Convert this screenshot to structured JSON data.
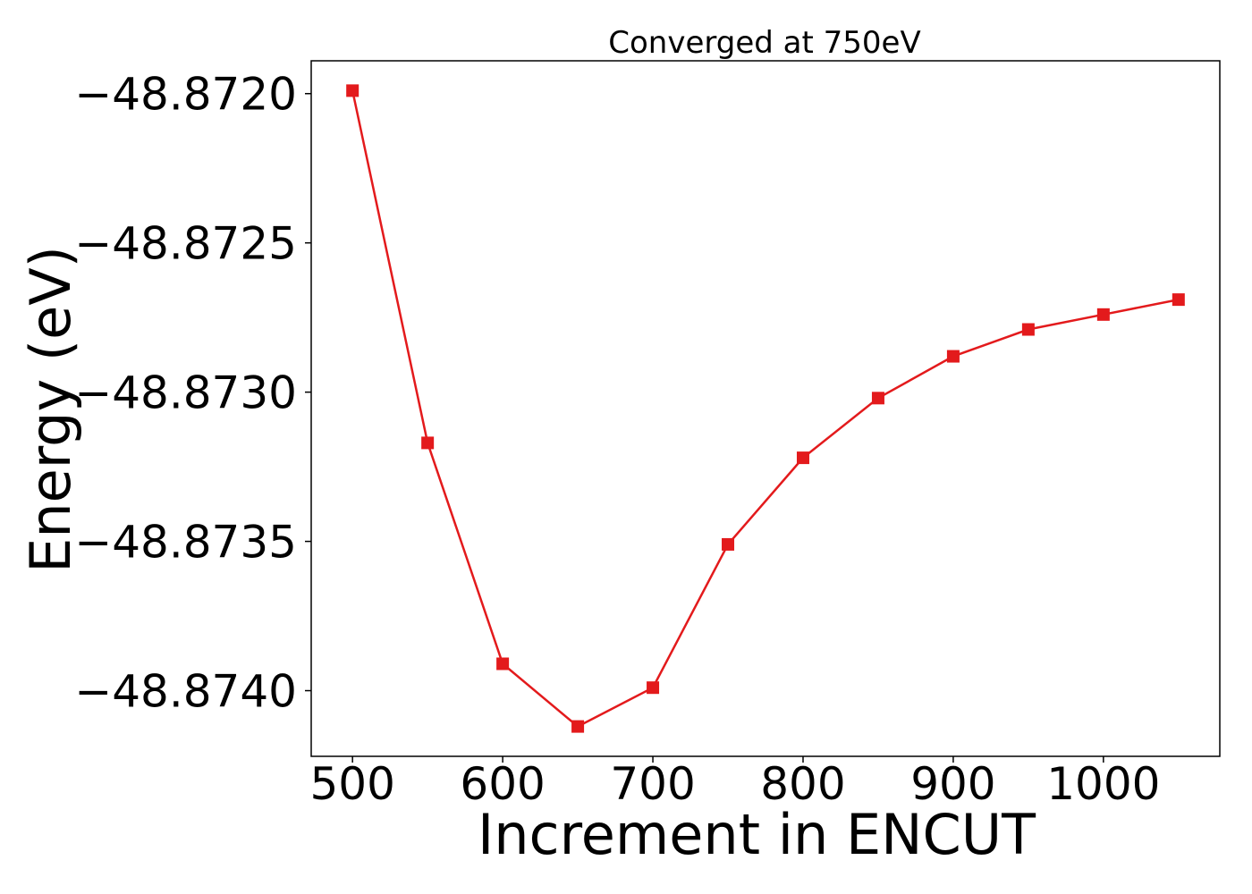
{
  "chart_data": {
    "type": "line",
    "title": "Converged at 750eV",
    "xlabel": "Increment in ENCUT",
    "ylabel": "Energy (eV)",
    "xlim": [
      472.5,
      1077.5
    ],
    "ylim": [
      -48.87422,
      -48.87189
    ],
    "xticks": [
      500,
      600,
      700,
      800,
      900,
      1000
    ],
    "xtick_labels": [
      "500",
      "600",
      "700",
      "800",
      "900",
      "1000"
    ],
    "yticks": [
      -48.872,
      -48.8725,
      -48.873,
      -48.8735,
      -48.874
    ],
    "ytick_labels": [
      "−48.8720",
      "−48.8725",
      "−48.8730",
      "−48.8735",
      "−48.8740"
    ],
    "grid": false,
    "series": [
      {
        "color": "#e31a1c",
        "marker": "square",
        "x": [
          500,
          550,
          600,
          650,
          700,
          750,
          800,
          850,
          900,
          950,
          1000,
          1050
        ],
        "y": [
          -48.87199,
          -48.87317,
          -48.87391,
          -48.87412,
          -48.87399,
          -48.87351,
          -48.87322,
          -48.87302,
          -48.87288,
          -48.87279,
          -48.87274,
          -48.87269
        ]
      }
    ]
  }
}
